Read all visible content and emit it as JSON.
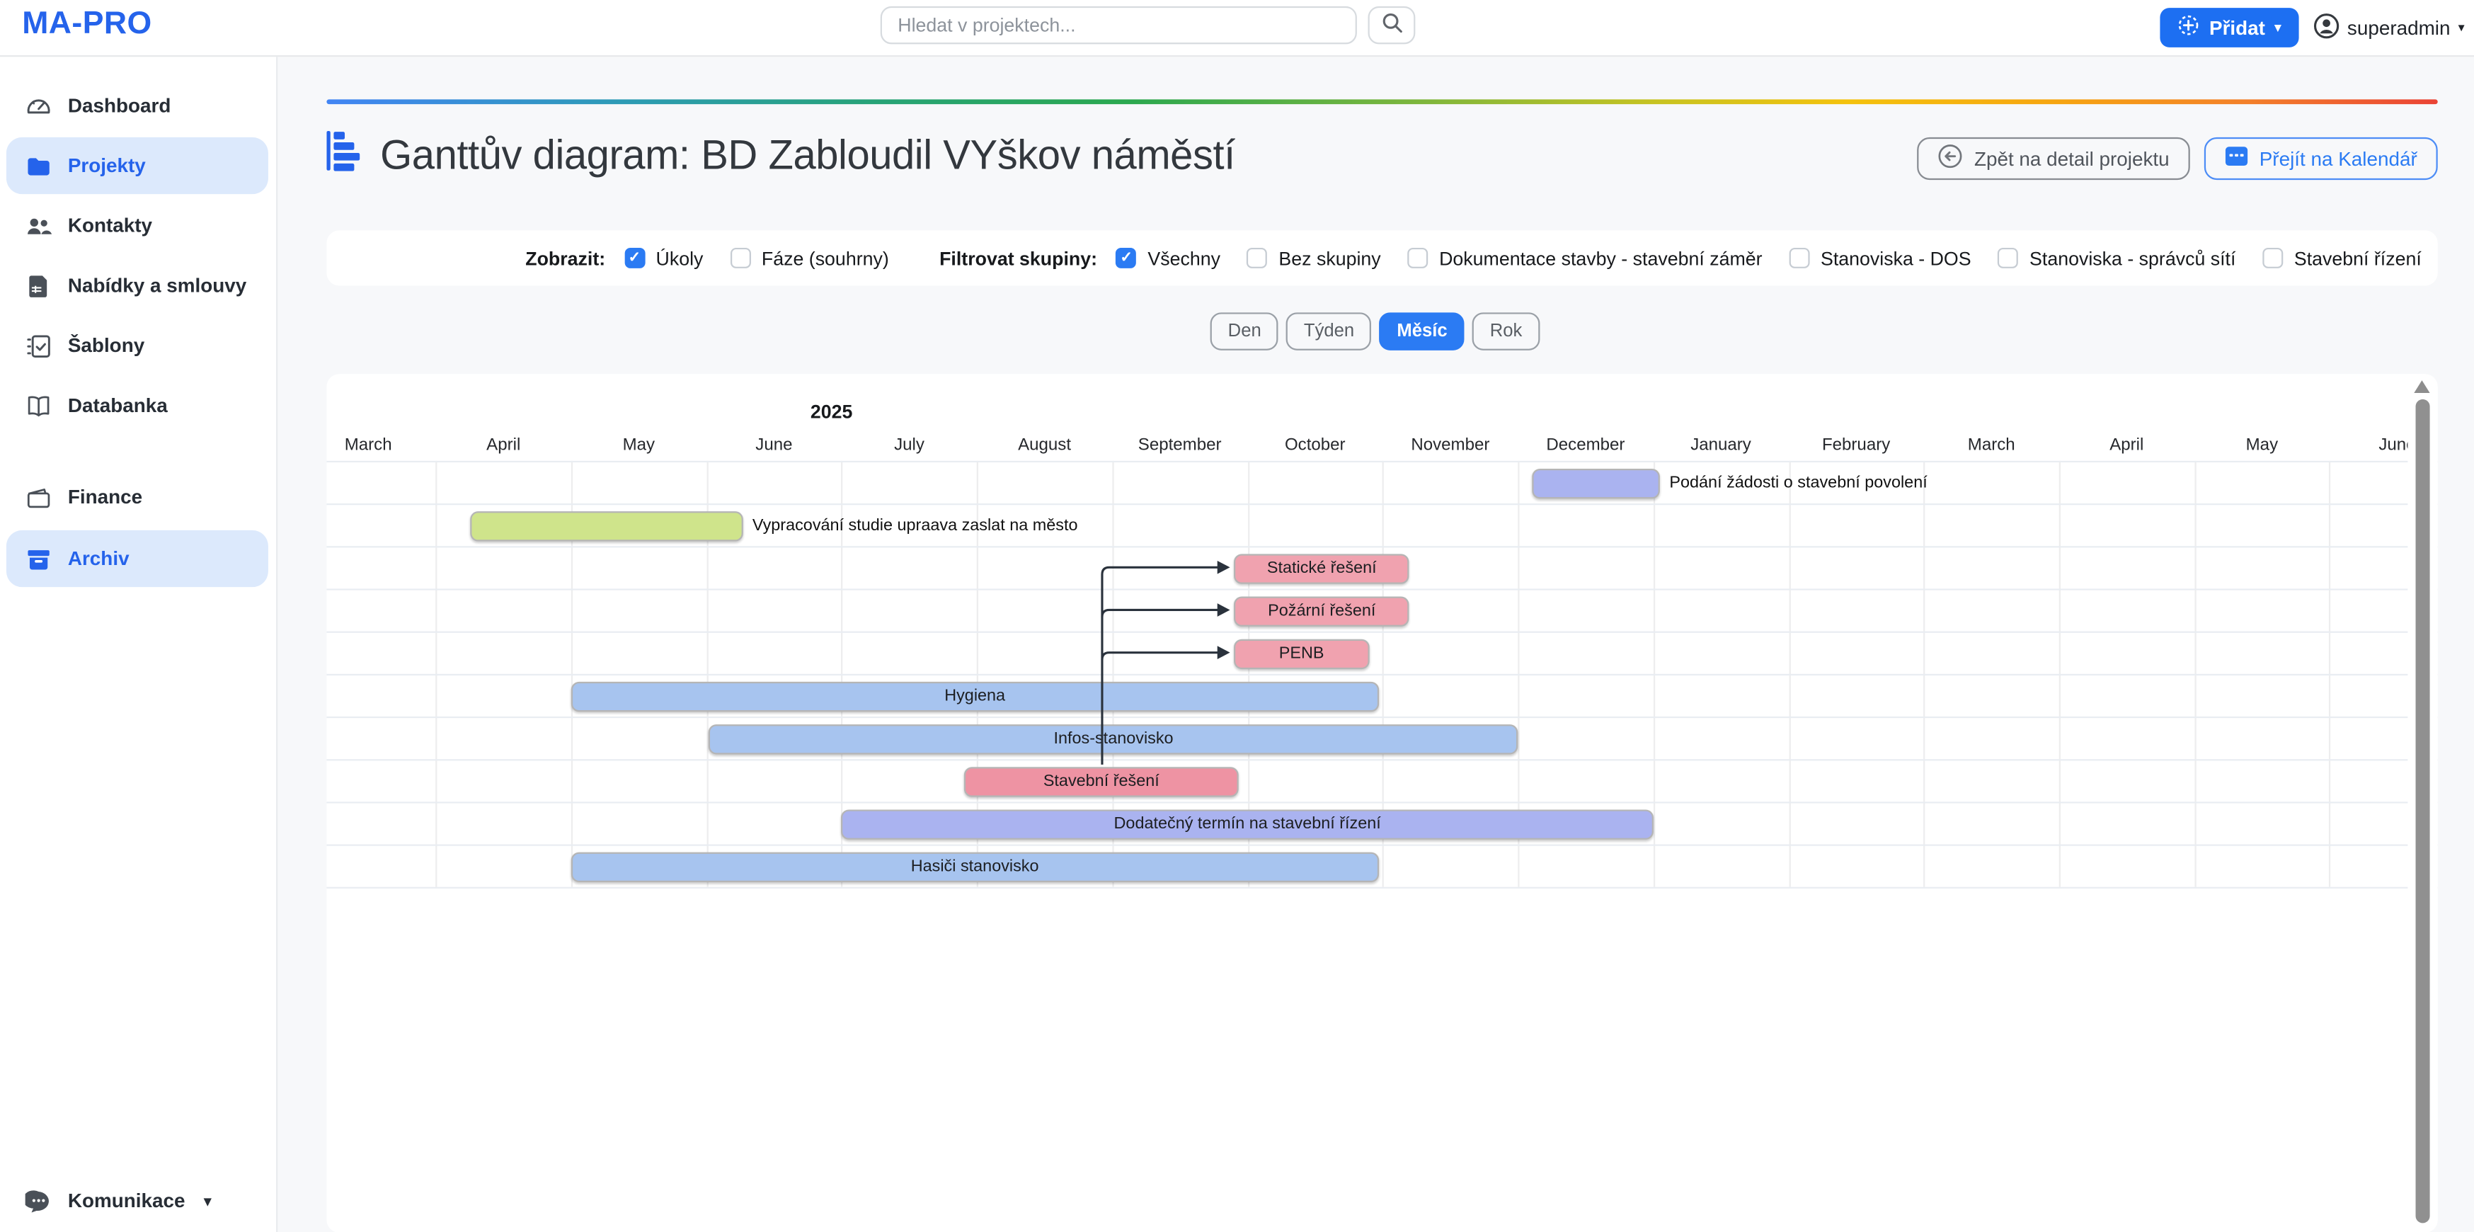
{
  "header": {
    "logo": "MA-PRO",
    "search": {
      "placeholder": "Hledat v projektech..."
    },
    "add_button": {
      "label": "Přidat"
    },
    "user": {
      "name": "superadmin"
    }
  },
  "sidebar": {
    "items": [
      {
        "label": "Dashboard",
        "icon": "gauge-icon",
        "active": false
      },
      {
        "label": "Projekty",
        "icon": "folder-icon",
        "active": true
      },
      {
        "label": "Kontakty",
        "icon": "people-icon",
        "active": false
      },
      {
        "label": "Nabídky a smlouvy",
        "icon": "contract-icon",
        "active": false
      },
      {
        "label": "Šablony",
        "icon": "checklist-icon",
        "active": false
      },
      {
        "label": "Databanka",
        "icon": "book-icon",
        "active": false
      },
      {
        "label": "Finance",
        "icon": "wallet-icon",
        "active": false
      },
      {
        "label": "Archiv",
        "icon": "archive-icon",
        "active": true
      }
    ],
    "bottom_item": {
      "label": "Komunikace",
      "icon": "chat-icon"
    }
  },
  "page": {
    "title": "Ganttův diagram: BD Zabloudil VYškov náměstí",
    "back_button": "Zpět na detail projektu",
    "calendar_button": "Přejít na Kalendář"
  },
  "filters": {
    "show_label": "Zobrazit:",
    "show_options": [
      {
        "label": "Úkoly",
        "checked": true
      },
      {
        "label": "Fáze (souhrny)",
        "checked": false
      }
    ],
    "group_label": "Filtrovat skupiny:",
    "group_options": [
      {
        "label": "Všechny",
        "checked": true
      },
      {
        "label": "Bez skupiny",
        "checked": false
      },
      {
        "label": "Dokumentace stavby - stavební záměr",
        "checked": false
      },
      {
        "label": "Stanoviska - DOS",
        "checked": false
      },
      {
        "label": "Stanoviska - správců sítí",
        "checked": false
      },
      {
        "label": "Stavební řízení",
        "checked": false
      }
    ]
  },
  "view_switcher": {
    "options": [
      {
        "label": "Den",
        "active": false
      },
      {
        "label": "Týden",
        "active": false
      },
      {
        "label": "Měsíc",
        "active": true
      },
      {
        "label": "Rok",
        "active": false
      }
    ]
  },
  "chart_data": {
    "type": "gantt",
    "year_label": "2025",
    "timeline_months": [
      "March",
      "April",
      "May",
      "June",
      "July",
      "August",
      "September",
      "October",
      "November",
      "December",
      "January",
      "February",
      "March",
      "April",
      "May",
      "June"
    ],
    "timeline_note": "month index 0 = March 2025, start/end are fractional month offsets",
    "tasks": [
      {
        "name": "Podání žádosti o stavební povolení",
        "start": 9.1,
        "end": 10.05,
        "color": "#aab3f0",
        "label_position": "right"
      },
      {
        "name": "Vypracování studie upraava zaslat na město",
        "start": 1.25,
        "end": 3.27,
        "color": "#cfe48b",
        "label_position": "right"
      },
      {
        "name": "Statické řešení",
        "start": 6.9,
        "end": 8.2,
        "color": "#f0a2af",
        "label_position": "inside"
      },
      {
        "name": "Požární řešení",
        "start": 6.9,
        "end": 8.2,
        "color": "#f0a2af",
        "label_position": "inside"
      },
      {
        "name": "PENB",
        "start": 6.9,
        "end": 7.9,
        "color": "#f0a2af",
        "label_position": "inside"
      },
      {
        "name": "Hygiena",
        "start": 2.0,
        "end": 7.97,
        "color": "#a7c4ef",
        "label_position": "inside"
      },
      {
        "name": "Infos-stanovisko",
        "start": 3.02,
        "end": 9.0,
        "color": "#a7c4ef",
        "label_position": "inside"
      },
      {
        "name": "Stavební řešení",
        "start": 4.9,
        "end": 6.94,
        "color": "#ee93a3",
        "label_position": "inside"
      },
      {
        "name": "Dodatečný termín na stavební řízení",
        "start": 4.0,
        "end": 10.0,
        "color": "#aab3f0",
        "label_position": "inside"
      },
      {
        "name": "Hasiči stanovisko",
        "start": 2.0,
        "end": 7.97,
        "color": "#a7c4ef",
        "label_position": "inside"
      }
    ],
    "dependency": {
      "from": "Stavební řešení",
      "to": [
        "Statické řešení",
        "Požární řešení",
        "PENB"
      ]
    },
    "colors": {
      "accent_blue": "#2b7bf3",
      "bar_blue": "#a7c4ef",
      "bar_purple": "#aab3f0",
      "bar_pink": "#f0a2af",
      "bar_deep_pink": "#ee93a3",
      "bar_green": "#cfe48b"
    }
  }
}
